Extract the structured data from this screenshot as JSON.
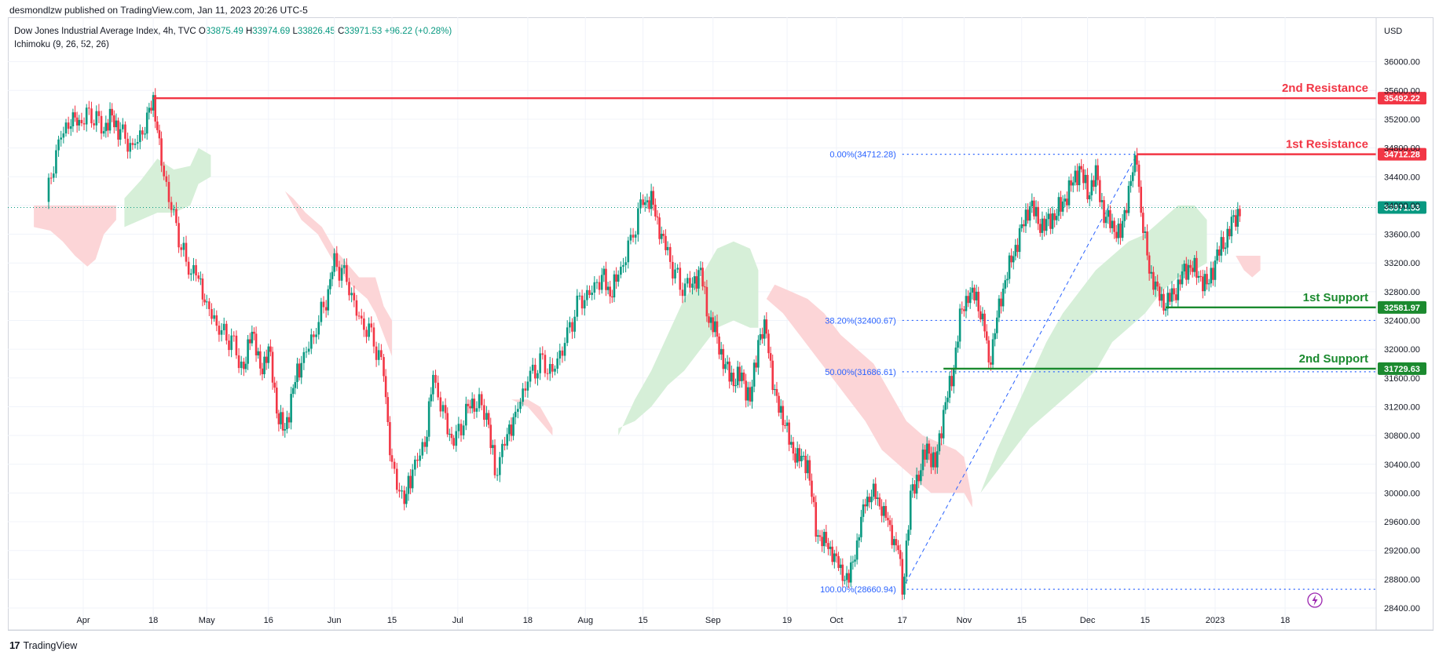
{
  "header": {
    "published": "desmondlzw published on TradingView.com, Jan 11, 2023 20:26 UTC-5"
  },
  "legend": {
    "symbol": "Dow Jones Industrial Average Index, 4h, TVC",
    "o_label": "O",
    "o": "33875.49",
    "h_label": "H",
    "h": "33974.69",
    "l_label": "L",
    "l": "33826.45",
    "c_label": "C",
    "c": "33971.53",
    "change": "+96.22 (+0.28%)",
    "indicator": "Ichimoku (9, 26, 52, 26)"
  },
  "currency": "USD",
  "footer": {
    "brand": "TradingView",
    "logo": "17"
  },
  "chart_data": {
    "type": "line",
    "title": "Dow Jones Industrial Average Index, 4h, TVC",
    "ylim": [
      28400,
      36400
    ],
    "y_ticks": [
      28400,
      28800,
      29200,
      29600,
      30000,
      30400,
      30800,
      31200,
      31600,
      32000,
      32400,
      32800,
      33200,
      33600,
      34000,
      34400,
      34800,
      35200,
      35600,
      36000
    ],
    "y_tick_labels": [
      "28400.00",
      "28800.00",
      "29200.00",
      "29600.00",
      "30000.00",
      "30400.00",
      "30800.00",
      "31200.00",
      "31600.00",
      "32000.00",
      "32400.00",
      "32800.00",
      "33200.00",
      "33600.00",
      "34000.00",
      "34400.00",
      "34800.00",
      "35200.00",
      "35600.00",
      "36000.00"
    ],
    "x_ticks": [
      {
        "label": "Apr",
        "day": 0
      },
      {
        "label": "18",
        "day": 17
      },
      {
        "label": "May",
        "day": 30
      },
      {
        "label": "16",
        "day": 45
      },
      {
        "label": "Jun",
        "day": 61
      },
      {
        "label": "15",
        "day": 75
      },
      {
        "label": "Jul",
        "day": 91
      },
      {
        "label": "18",
        "day": 108
      },
      {
        "label": "Aug",
        "day": 122
      },
      {
        "label": "15",
        "day": 136
      },
      {
        "label": "Sep",
        "day": 153
      },
      {
        "label": "19",
        "day": 171
      },
      {
        "label": "Oct",
        "day": 183
      },
      {
        "label": "17",
        "day": 199
      },
      {
        "label": "Nov",
        "day": 214
      },
      {
        "label": "15",
        "day": 228
      },
      {
        "label": "Dec",
        "day": 244
      },
      {
        "label": "15",
        "day": 258
      },
      {
        "label": "2023",
        "day": 275
      },
      {
        "label": "18",
        "day": 292
      }
    ],
    "price_path": [
      [
        -9,
        34050
      ],
      [
        -6,
        34900
      ],
      [
        -3,
        35200
      ],
      [
        -1,
        35150
      ],
      [
        2,
        35300
      ],
      [
        5,
        35050
      ],
      [
        7,
        35250
      ],
      [
        9,
        35000
      ],
      [
        12,
        34800
      ],
      [
        15,
        35100
      ],
      [
        17,
        35490
      ],
      [
        19,
        34600
      ],
      [
        22,
        33800
      ],
      [
        25,
        33200
      ],
      [
        28,
        33000
      ],
      [
        30,
        32600
      ],
      [
        33,
        32300
      ],
      [
        36,
        32100
      ],
      [
        39,
        31700
      ],
      [
        41,
        32300
      ],
      [
        43,
        31700
      ],
      [
        45,
        32000
      ],
      [
        47,
        31200
      ],
      [
        49,
        30800
      ],
      [
        51,
        31500
      ],
      [
        53,
        31800
      ],
      [
        56,
        32200
      ],
      [
        59,
        32700
      ],
      [
        61,
        33200
      ],
      [
        64,
        33000
      ],
      [
        67,
        32400
      ],
      [
        70,
        32200
      ],
      [
        73,
        31700
      ],
      [
        75,
        30300
      ],
      [
        78,
        29900
      ],
      [
        80,
        30300
      ],
      [
        83,
        30700
      ],
      [
        85,
        31600
      ],
      [
        88,
        31000
      ],
      [
        90,
        30700
      ],
      [
        93,
        31100
      ],
      [
        95,
        31300
      ],
      [
        98,
        31100
      ],
      [
        100,
        30300
      ],
      [
        103,
        30800
      ],
      [
        105,
        31100
      ],
      [
        108,
        31600
      ],
      [
        111,
        31800
      ],
      [
        114,
        31700
      ],
      [
        117,
        32100
      ],
      [
        120,
        32600
      ],
      [
        123,
        32800
      ],
      [
        126,
        33000
      ],
      [
        128,
        32800
      ],
      [
        130,
        33000
      ],
      [
        133,
        33500
      ],
      [
        136,
        34100
      ],
      [
        138,
        34050
      ],
      [
        140,
        33700
      ],
      [
        142,
        33300
      ],
      [
        145,
        32900
      ],
      [
        148,
        32900
      ],
      [
        150,
        33100
      ],
      [
        152,
        32400
      ],
      [
        154,
        32200
      ],
      [
        156,
        31700
      ],
      [
        158,
        31600
      ],
      [
        160,
        31600
      ],
      [
        162,
        31300
      ],
      [
        164,
        32100
      ],
      [
        166,
        32300
      ],
      [
        168,
        31300
      ],
      [
        170,
        31100
      ],
      [
        172,
        30600
      ],
      [
        174,
        30500
      ],
      [
        176,
        30400
      ],
      [
        178,
        29500
      ],
      [
        180,
        29300
      ],
      [
        182,
        29200
      ],
      [
        184,
        28900
      ],
      [
        186,
        28800
      ],
      [
        188,
        29300
      ],
      [
        190,
        29900
      ],
      [
        192,
        30000
      ],
      [
        194,
        29800
      ],
      [
        196,
        29500
      ],
      [
        198,
        29200
      ],
      [
        199,
        28660
      ],
      [
        201,
        29900
      ],
      [
        203,
        30300
      ],
      [
        205,
        30600
      ],
      [
        207,
        30400
      ],
      [
        209,
        31100
      ],
      [
        211,
        31600
      ],
      [
        213,
        32400
      ],
      [
        215,
        32800
      ],
      [
        217,
        32700
      ],
      [
        219,
        32300
      ],
      [
        220,
        31800
      ],
      [
        222,
        32400
      ],
      [
        224,
        33000
      ],
      [
        226,
        33300
      ],
      [
        228,
        33700
      ],
      [
        230,
        34000
      ],
      [
        232,
        33800
      ],
      [
        234,
        33700
      ],
      [
        236,
        33900
      ],
      [
        238,
        34000
      ],
      [
        240,
        34300
      ],
      [
        242,
        34500
      ],
      [
        244,
        34200
      ],
      [
        246,
        34400
      ],
      [
        248,
        33900
      ],
      [
        250,
        33700
      ],
      [
        252,
        33600
      ],
      [
        254,
        34200
      ],
      [
        256,
        34700
      ],
      [
        257,
        33900
      ],
      [
        259,
        33100
      ],
      [
        261,
        32800
      ],
      [
        263,
        32600
      ],
      [
        265,
        32800
      ],
      [
        267,
        33000
      ],
      [
        269,
        33200
      ],
      [
        271,
        33000
      ],
      [
        273,
        32900
      ],
      [
        275,
        33200
      ],
      [
        277,
        33500
      ],
      [
        279,
        33700
      ],
      [
        281,
        33970
      ]
    ],
    "cloud_red": [
      [
        [
          -12,
          34000
        ],
        [
          8,
          34000
        ],
        [
          8,
          33800
        ],
        [
          5,
          33600
        ],
        [
          3,
          33250
        ],
        [
          1,
          33150
        ],
        [
          -2,
          33300
        ],
        [
          -5,
          33500
        ],
        [
          -8,
          33650
        ],
        [
          -12,
          33700
        ]
      ],
      [
        [
          49,
          34200
        ],
        [
          53,
          33800
        ],
        [
          57,
          33600
        ],
        [
          61,
          33200
        ],
        [
          65,
          32900
        ],
        [
          69,
          32700
        ],
        [
          71,
          32500
        ],
        [
          73,
          32200
        ],
        [
          75,
          31900
        ],
        [
          75,
          32400
        ],
        [
          73,
          32600
        ],
        [
          71,
          33000
        ],
        [
          69,
          33000
        ],
        [
          67,
          33000
        ],
        [
          64,
          33200
        ],
        [
          61,
          33400
        ],
        [
          58,
          33700
        ],
        [
          54,
          33900
        ],
        [
          51,
          34100
        ]
      ],
      [
        [
          95,
          31300
        ],
        [
          100,
          31300
        ],
        [
          104,
          31300
        ],
        [
          108,
          31200
        ],
        [
          111,
          31000
        ],
        [
          114,
          30800
        ],
        [
          114,
          30900
        ],
        [
          111,
          31200
        ],
        [
          108,
          31300
        ],
        [
          104,
          31300
        ],
        [
          100,
          31300
        ],
        [
          97,
          31300
        ]
      ],
      [
        [
          166,
          32700
        ],
        [
          170,
          32500
        ],
        [
          174,
          32200
        ],
        [
          178,
          31900
        ],
        [
          182,
          31600
        ],
        [
          186,
          31300
        ],
        [
          190,
          31000
        ],
        [
          194,
          30600
        ],
        [
          198,
          30400
        ],
        [
          202,
          30200
        ],
        [
          206,
          30000
        ],
        [
          210,
          30000
        ],
        [
          214,
          30000
        ],
        [
          216,
          29800
        ],
        [
          216,
          29900
        ],
        [
          214,
          30500
        ],
        [
          212,
          30600
        ],
        [
          208,
          30700
        ],
        [
          204,
          30800
        ],
        [
          200,
          31000
        ],
        [
          196,
          31400
        ],
        [
          192,
          31800
        ],
        [
          188,
          32000
        ],
        [
          184,
          32200
        ],
        [
          180,
          32500
        ],
        [
          176,
          32700
        ],
        [
          172,
          32800
        ],
        [
          168,
          32900
        ]
      ],
      [
        [
          270,
          33300
        ],
        [
          278,
          33300
        ],
        [
          286,
          33300
        ],
        [
          286,
          33100
        ],
        [
          284,
          33000
        ],
        [
          282,
          33100
        ],
        [
          280,
          33300
        ],
        [
          278,
          33300
        ]
      ]
    ],
    "cloud_green": [
      [
        [
          10,
          34100
        ],
        [
          14,
          34350
        ],
        [
          18,
          34650
        ],
        [
          22,
          34500
        ],
        [
          26,
          34550
        ],
        [
          28,
          34800
        ],
        [
          31,
          34700
        ],
        [
          31,
          34400
        ],
        [
          28,
          34300
        ],
        [
          26,
          34000
        ],
        [
          22,
          33900
        ],
        [
          18,
          33900
        ],
        [
          14,
          33800
        ],
        [
          10,
          33700
        ]
      ],
      [
        [
          130,
          30800
        ],
        [
          134,
          31300
        ],
        [
          138,
          31700
        ],
        [
          142,
          32200
        ],
        [
          146,
          32700
        ],
        [
          150,
          33000
        ],
        [
          154,
          33400
        ],
        [
          158,
          33500
        ],
        [
          162,
          33400
        ],
        [
          164,
          33100
        ],
        [
          164,
          32300
        ],
        [
          162,
          32300
        ],
        [
          158,
          32400
        ],
        [
          154,
          32300
        ],
        [
          150,
          32000
        ],
        [
          146,
          31700
        ],
        [
          142,
          31500
        ],
        [
          138,
          31200
        ],
        [
          134,
          31000
        ],
        [
          130,
          30900
        ]
      ],
      [
        [
          218,
          30000
        ],
        [
          222,
          30600
        ],
        [
          226,
          31100
        ],
        [
          230,
          31600
        ],
        [
          234,
          32100
        ],
        [
          238,
          32500
        ],
        [
          242,
          32800
        ],
        [
          246,
          33100
        ],
        [
          250,
          33300
        ],
        [
          254,
          33500
        ],
        [
          258,
          33600
        ],
        [
          262,
          33800
        ],
        [
          266,
          34000
        ],
        [
          270,
          34000
        ],
        [
          273,
          33800
        ],
        [
          273,
          33200
        ],
        [
          270,
          33100
        ],
        [
          266,
          33000
        ],
        [
          262,
          32800
        ],
        [
          258,
          32500
        ],
        [
          254,
          32300
        ],
        [
          250,
          32100
        ],
        [
          246,
          31700
        ],
        [
          242,
          31500
        ],
        [
          238,
          31300
        ],
        [
          234,
          31100
        ],
        [
          230,
          30900
        ],
        [
          226,
          30600
        ],
        [
          222,
          30300
        ],
        [
          218,
          30000
        ]
      ]
    ],
    "levels": [
      {
        "name": "2nd Resistance",
        "value": 35492.22,
        "label": "35492.22",
        "color": "#f23645",
        "from_day": 17
      },
      {
        "name": "1st Resistance",
        "value": 34712.28,
        "label": "34712.28",
        "color": "#f23645",
        "from_day": 256
      },
      {
        "name": "1st Support",
        "value": 32581.97,
        "label": "32581.97",
        "color": "#1b8a2f",
        "from_day": 263
      },
      {
        "name": "2nd Support",
        "value": 31729.63,
        "label": "31729.63",
        "color": "#1b8a2f",
        "from_day": 209
      }
    ],
    "last_price": {
      "value": 33971.53,
      "label": "33971.53",
      "color": "#089981"
    },
    "fibonacci": [
      {
        "label": "0.00%(34712.28)",
        "value": 34712.28
      },
      {
        "label": "38.20%(32400.67)",
        "value": 32400.67
      },
      {
        "label": "50.00%(31686.61)",
        "value": 31686.61
      },
      {
        "label": "100.00%(28660.94)",
        "value": 28660.94
      }
    ],
    "fib_start": {
      "day": 199,
      "value": 28660.94
    },
    "fib_end": {
      "day": 256,
      "value": 34712.28
    },
    "colors": {
      "up": "#089981",
      "down": "#f23645",
      "cloud_red": "#fcd5d7",
      "cloud_green": "#d6efd8",
      "fib": "#2962ff",
      "grid": "#f0f3fa"
    }
  }
}
